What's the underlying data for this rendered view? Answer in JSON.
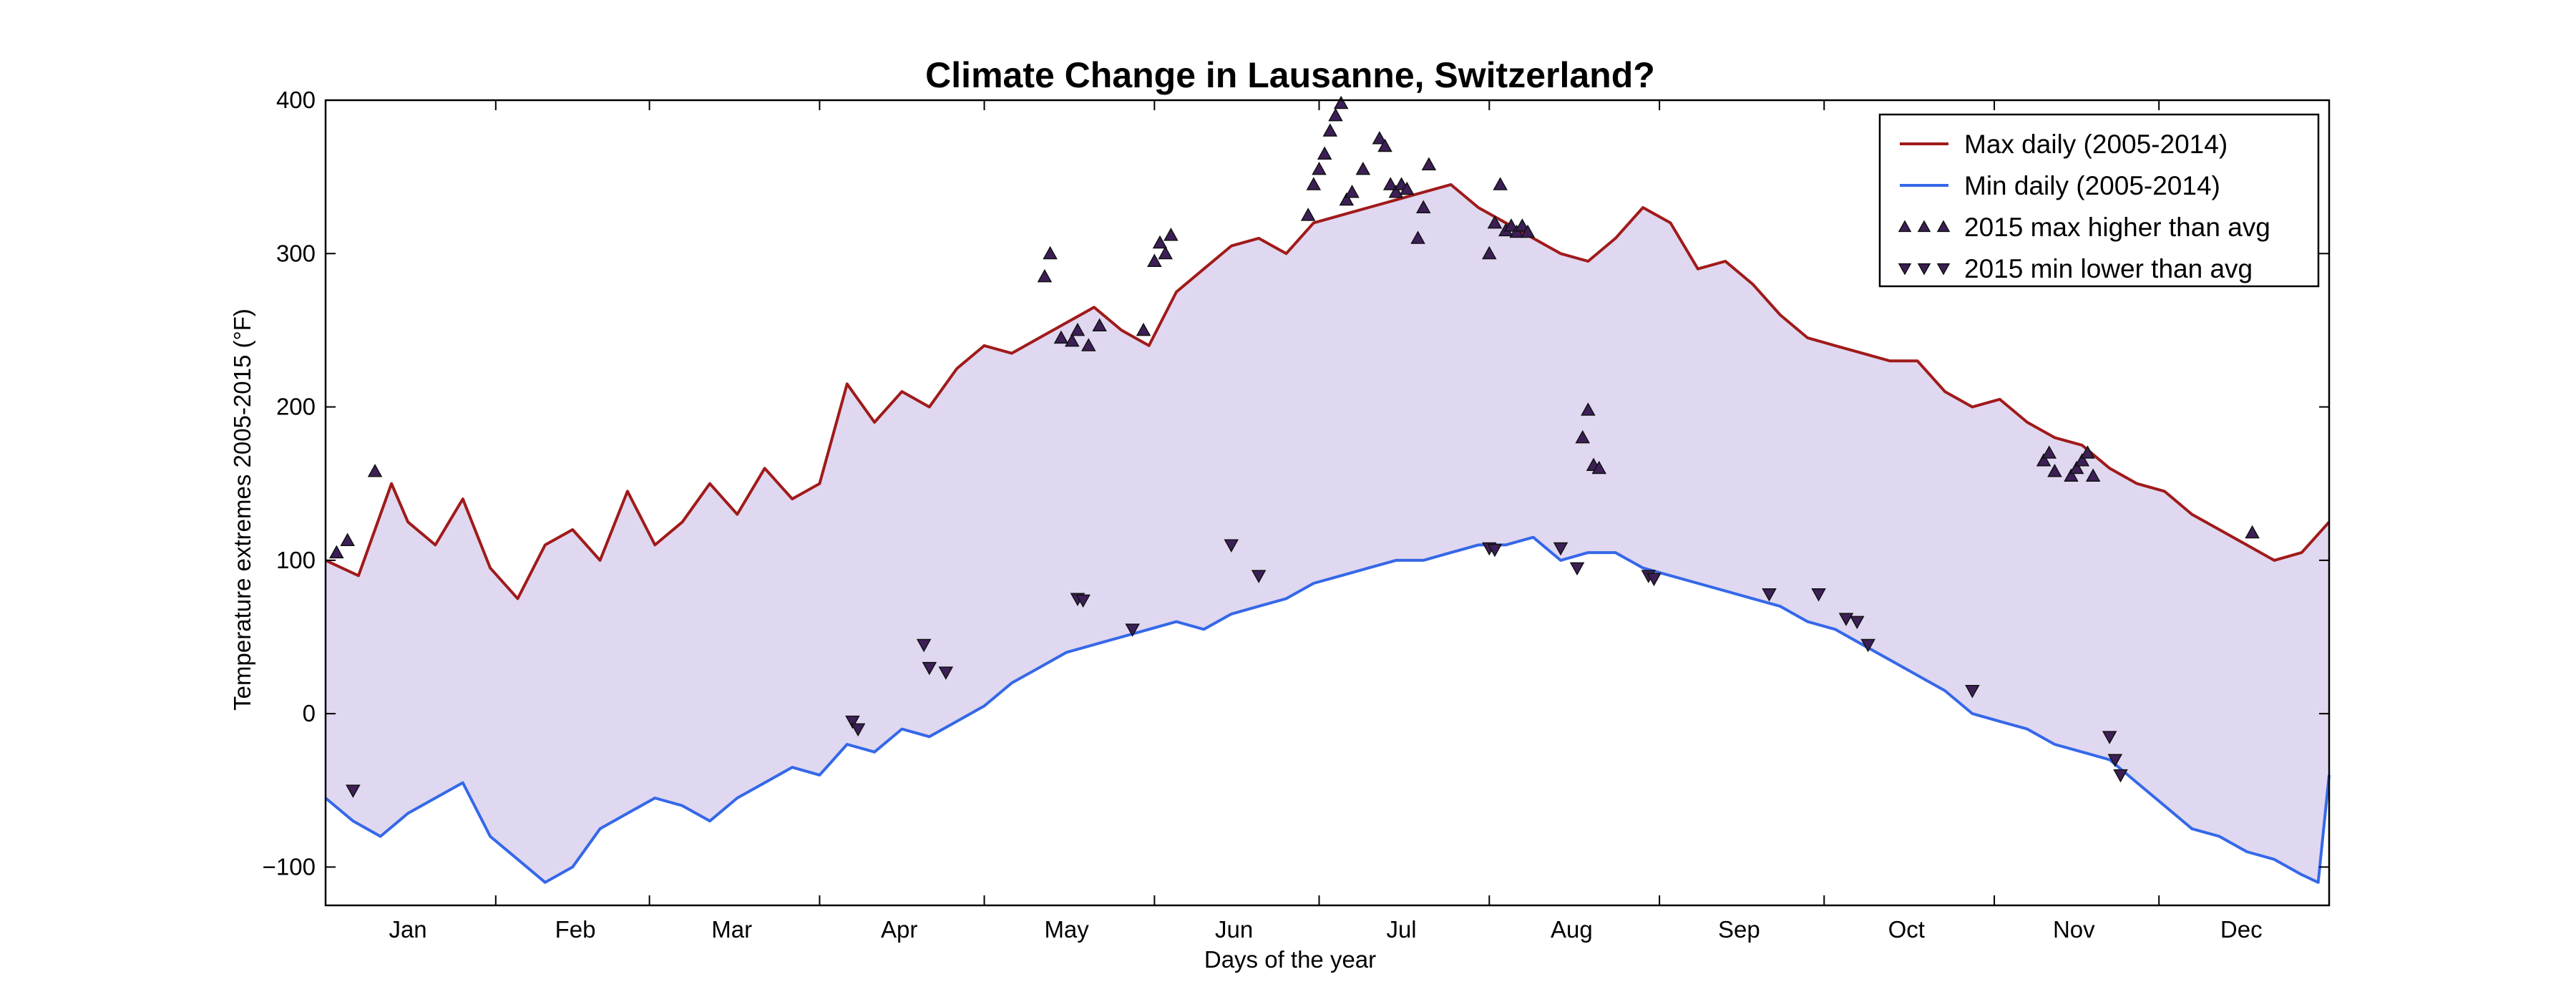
{
  "chart_data": {
    "type": "line",
    "title": "Climate Change in Lausanne, Switzerland?",
    "xlabel": "Days of the year",
    "ylabel": "Temperature extremes 2005-2015 (°F)",
    "xlim": [
      0,
      365
    ],
    "ylim": [
      -125,
      400
    ],
    "yticks": [
      -100,
      0,
      100,
      200,
      300,
      400
    ],
    "ytick_labels": [
      "−100",
      "0",
      "100",
      "200",
      "300",
      "400"
    ],
    "month_labels": [
      "Jan",
      "Feb",
      "Mar",
      "Apr",
      "May",
      "Jun",
      "Jul",
      "Aug",
      "Sep",
      "Oct",
      "Nov",
      "Dec"
    ],
    "month_label_days": [
      15,
      45.5,
      74,
      104.5,
      135,
      165.5,
      196,
      227,
      257.5,
      288,
      318.5,
      349
    ],
    "month_boundaries": [
      31,
      59,
      90,
      120,
      151,
      181,
      212,
      243,
      273,
      304,
      334
    ],
    "fill_color": "#e0d8f0",
    "legend_position": "upper-right",
    "series": [
      {
        "name": "Max daily (2005-2014)",
        "color": "#a01a1a",
        "x": [
          0,
          6,
          12,
          15,
          20,
          25,
          30,
          35,
          40,
          45,
          50,
          55,
          60,
          65,
          70,
          75,
          80,
          85,
          90,
          95,
          100,
          105,
          110,
          115,
          120,
          125,
          130,
          135,
          140,
          145,
          150,
          155,
          160,
          165,
          170,
          175,
          180,
          185,
          190,
          195,
          200,
          205,
          210,
          215,
          220,
          225,
          230,
          235,
          240,
          245,
          250,
          255,
          260,
          265,
          270,
          275,
          280,
          285,
          290,
          295,
          300,
          305,
          310,
          315,
          320,
          325,
          330,
          335,
          340,
          345,
          350,
          355,
          360,
          365
        ],
        "values": [
          100,
          90,
          150,
          125,
          110,
          140,
          95,
          75,
          110,
          120,
          100,
          145,
          110,
          125,
          150,
          130,
          160,
          140,
          150,
          215,
          190,
          210,
          200,
          225,
          240,
          235,
          245,
          255,
          265,
          250,
          240,
          275,
          290,
          305,
          310,
          300,
          320,
          325,
          330,
          335,
          340,
          345,
          330,
          320,
          310,
          300,
          295,
          310,
          330,
          320,
          290,
          295,
          280,
          260,
          245,
          240,
          235,
          230,
          230,
          210,
          200,
          205,
          190,
          180,
          175,
          160,
          150,
          145,
          130,
          120,
          110,
          100,
          105,
          125
        ]
      },
      {
        "name": "Min daily (2005-2014)",
        "color": "#3568e8",
        "x": [
          0,
          5,
          10,
          15,
          20,
          25,
          30,
          35,
          40,
          45,
          50,
          55,
          60,
          65,
          70,
          75,
          80,
          85,
          90,
          95,
          100,
          105,
          110,
          115,
          120,
          125,
          130,
          135,
          140,
          145,
          150,
          155,
          160,
          165,
          170,
          175,
          180,
          185,
          190,
          195,
          200,
          205,
          210,
          215,
          220,
          225,
          230,
          235,
          240,
          245,
          250,
          255,
          260,
          265,
          270,
          275,
          280,
          285,
          290,
          295,
          300,
          305,
          310,
          315,
          320,
          325,
          330,
          335,
          340,
          345,
          350,
          355,
          360,
          363,
          365
        ],
        "values": [
          -55,
          -70,
          -80,
          -65,
          -55,
          -45,
          -80,
          -95,
          -110,
          -100,
          -75,
          -65,
          -55,
          -60,
          -70,
          -55,
          -45,
          -35,
          -40,
          -20,
          -25,
          -10,
          -15,
          -5,
          5,
          20,
          30,
          40,
          45,
          50,
          55,
          60,
          55,
          65,
          70,
          75,
          85,
          90,
          95,
          100,
          100,
          105,
          110,
          110,
          115,
          100,
          105,
          105,
          95,
          90,
          85,
          80,
          75,
          70,
          60,
          55,
          45,
          35,
          25,
          15,
          0,
          -5,
          -10,
          -20,
          -25,
          -30,
          -45,
          -60,
          -75,
          -80,
          -90,
          -95,
          -105,
          -110,
          -40
        ]
      }
    ],
    "scatter": [
      {
        "name": "2015 max higher than avg",
        "marker": "triangle-up",
        "color": "#3d1f57",
        "x": [
          2,
          4,
          9,
          131,
          132,
          134,
          136,
          137,
          139,
          141,
          149,
          151,
          152,
          153,
          154,
          179,
          180,
          181,
          182,
          183,
          184,
          185,
          186,
          187,
          189,
          192,
          193,
          194,
          195,
          196,
          197,
          199,
          200,
          201,
          212,
          213,
          214,
          215,
          216,
          217,
          218,
          219,
          229,
          230,
          231,
          232,
          313,
          314,
          315,
          318,
          319,
          320,
          321,
          322,
          351
        ],
        "values": [
          105,
          113,
          158,
          285,
          300,
          245,
          243,
          250,
          240,
          253,
          250,
          295,
          307,
          300,
          312,
          325,
          345,
          355,
          365,
          380,
          390,
          398,
          335,
          340,
          355,
          375,
          370,
          345,
          340,
          345,
          342,
          310,
          330,
          358,
          300,
          320,
          345,
          315,
          318,
          314,
          318,
          314,
          180,
          198,
          162,
          160,
          165,
          170,
          158,
          155,
          160,
          165,
          170,
          155,
          118
        ]
      },
      {
        "name": "2015 min lower than avg",
        "marker": "triangle-down",
        "color": "#3d1f57",
        "x": [
          5,
          96,
          97,
          109,
          110,
          113,
          137,
          138,
          147,
          165,
          170,
          212,
          213,
          225,
          228,
          241,
          242,
          263,
          272,
          277,
          279,
          281,
          300,
          325,
          326,
          327
        ],
        "values": [
          -50,
          -5,
          -10,
          45,
          30,
          27,
          75,
          74,
          55,
          110,
          90,
          108,
          107,
          108,
          95,
          90,
          88,
          78,
          78,
          62,
          60,
          45,
          15,
          -15,
          -30,
          -40
        ]
      }
    ]
  }
}
